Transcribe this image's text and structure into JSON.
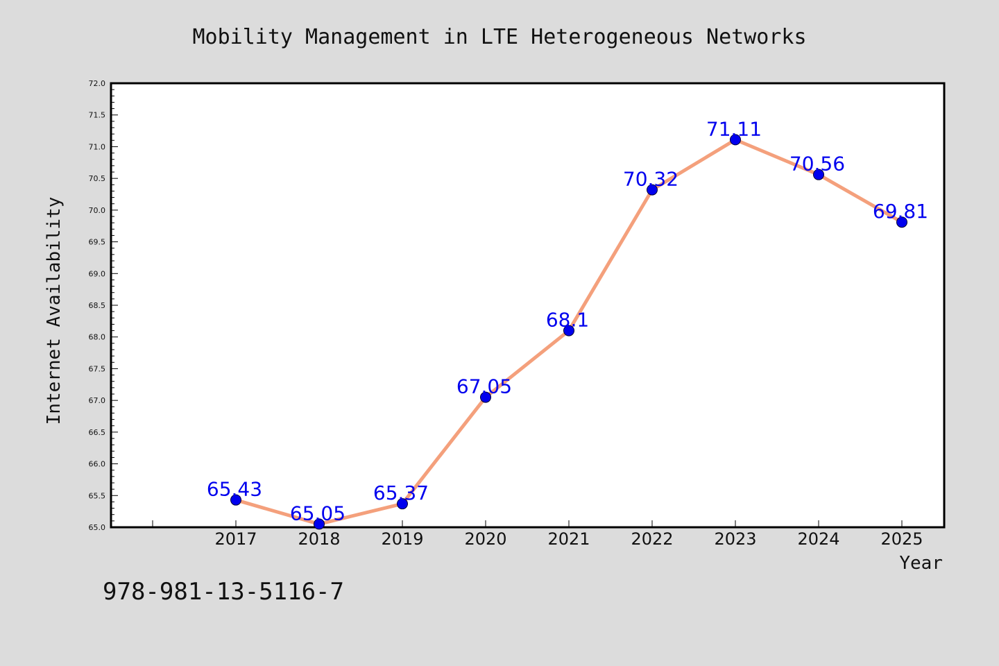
{
  "chart_data": {
    "type": "line",
    "title": "Mobility Management in LTE Heterogeneous Networks",
    "xlabel": "Year",
    "ylabel": "Internet Availability",
    "categories": [
      "2017",
      "2018",
      "2019",
      "2020",
      "2021",
      "2022",
      "2023",
      "2024",
      "2025"
    ],
    "series": [
      {
        "values": [
          65.43,
          65.05,
          65.37,
          67.05,
          68.1,
          70.32,
          71.11,
          70.56,
          69.81
        ],
        "data_labels": [
          "65.43",
          "65.05",
          "65.37",
          "67.05",
          "68.1",
          "70.32",
          "71.11",
          "70.56",
          "69.81"
        ],
        "line_color": "#f4a07c",
        "marker_color": "#0000ee"
      }
    ],
    "ylim": [
      65.0,
      72.0
    ],
    "yticks": [
      "65.0",
      "65.5",
      "66.0",
      "66.5",
      "67.0",
      "67.5",
      "68.0",
      "68.5",
      "69.0",
      "69.5",
      "70.0",
      "70.5",
      "71.0",
      "71.5",
      "72.0"
    ],
    "grid": false,
    "legend": "none"
  },
  "footer": {
    "isbn": "978-981-13-5116-7"
  },
  "colors": {
    "background": "#dcdcdc",
    "plot_background": "#ffffff",
    "data_label": "#0000ee"
  }
}
